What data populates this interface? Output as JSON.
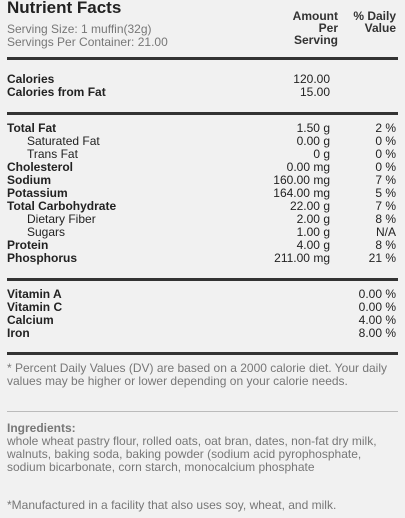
{
  "header": {
    "title": "Nutrient Facts",
    "serving_size": "Serving Size: 1 muffin(32g)",
    "servings_per_container": "Servings Per Container: 21.00",
    "col_amount_1": "Amount",
    "col_amount_2": "Per",
    "col_amount_3": "Serving",
    "col_dv_1": "% Daily",
    "col_dv_2": "Value"
  },
  "calories": [
    {
      "label": "Calories",
      "amount": "120.00",
      "dv": ""
    },
    {
      "label": "Calories from Fat",
      "amount": "15.00",
      "dv": ""
    }
  ],
  "nutrients": [
    {
      "label": "Total Fat",
      "amount": "1.50 g",
      "dv": "2 %",
      "bold": true,
      "indent": false
    },
    {
      "label": "Saturated Fat",
      "amount": "0.00 g",
      "dv": "0 %",
      "bold": false,
      "indent": true
    },
    {
      "label": "Trans Fat",
      "amount": "0 g",
      "dv": "0 %",
      "bold": false,
      "indent": true
    },
    {
      "label": "Cholesterol",
      "amount": "0.00 mg",
      "dv": "0 %",
      "bold": true,
      "indent": false
    },
    {
      "label": "Sodium",
      "amount": "160.00 mg",
      "dv": "7 %",
      "bold": true,
      "indent": false
    },
    {
      "label": "Potassium",
      "amount": "164.00 mg",
      "dv": "5 %",
      "bold": true,
      "indent": false
    },
    {
      "label": "Total Carbohydrate",
      "amount": "22.00 g",
      "dv": "7 %",
      "bold": true,
      "indent": false
    },
    {
      "label": "Dietary Fiber",
      "amount": "2.00 g",
      "dv": "8 %",
      "bold": false,
      "indent": true
    },
    {
      "label": "Sugars",
      "amount": "1.00 g",
      "dv": "N/A",
      "bold": false,
      "indent": true
    },
    {
      "label": "Protein",
      "amount": "4.00 g",
      "dv": "8 %",
      "bold": true,
      "indent": false
    },
    {
      "label": "Phosphorus",
      "amount": "211.00 mg",
      "dv": "21 %",
      "bold": true,
      "indent": false
    }
  ],
  "vitamins": [
    {
      "label": "Vitamin A",
      "dv": "0.00 %"
    },
    {
      "label": "Vitamin C",
      "dv": "0.00 %"
    },
    {
      "label": "Calcium",
      "dv": "4.00 %"
    },
    {
      "label": "Iron",
      "dv": "8.00 %"
    }
  ],
  "footnote": "* Percent Daily Values (DV) are based on a 2000 calorie diet. Your daily values may be higher or lower depending on your calorie needs.",
  "ingredients_heading": "Ingredients:",
  "ingredients": "whole wheat pastry flour, rolled oats, oat bran, dates, non-fat dry milk, walnuts, baking soda, baking powder (sodium acid pyrophosphate, sodium bicarbonate, corn starch, monocalcium phosphate",
  "allergen_note": "*Manufactured in a facility that also uses soy, wheat, and milk."
}
